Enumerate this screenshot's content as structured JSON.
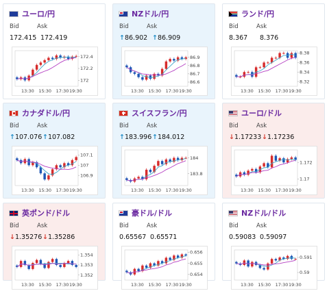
{
  "labels": {
    "bid": "Bid",
    "ask": "Ask"
  },
  "colors": {
    "up_card_bg": "#e9f4fc",
    "down_card_bg": "#fbeceb",
    "title": "#6b2aa1",
    "candle_up": "#d62c2c",
    "candle_down": "#1e57b5",
    "ma_fast": "#3fa7c9",
    "ma_slow": "#b43ec2",
    "arrow_up": "#1f8bc5",
    "arrow_down": "#d4382c"
  },
  "cards": [
    {
      "pair": "ユーロ/円",
      "flag": "eu-flag-icon",
      "state": "neutral",
      "bid": "172.415",
      "ask": "172.419",
      "chart": {
        "x_ticks": [
          "13:30",
          "15:30",
          "17:30",
          "19:30"
        ],
        "y_ticks": [
          "172.4",
          "172.2",
          "172"
        ],
        "ylim": [
          171.9,
          172.5
        ],
        "close": [
          172.02,
          172.05,
          172.0,
          172.08,
          172.18,
          172.26,
          172.3,
          172.34,
          172.38,
          172.36,
          172.42,
          172.38,
          172.4,
          172.36,
          172.4,
          172.41
        ]
      }
    },
    {
      "pair": "NZドル/円",
      "flag": "nz-flag-icon",
      "state": "up",
      "bid": "86.902",
      "ask": "86.909",
      "chart": {
        "x_ticks": [
          "13:30",
          "15:30",
          "17:30",
          "19:30"
        ],
        "y_ticks": [
          "86.9",
          "86.8",
          "86.7",
          "86.6"
        ],
        "ylim": [
          86.55,
          86.98
        ],
        "close": [
          86.78,
          86.72,
          86.7,
          86.66,
          86.63,
          86.68,
          86.64,
          86.7,
          86.68,
          86.76,
          86.85,
          86.88,
          86.86,
          86.9,
          86.88,
          86.9
        ]
      }
    },
    {
      "pair": "ランド/円",
      "flag": "za-flag-icon",
      "state": "neutral",
      "bid": "8.367",
      "ask": "8.376",
      "chart": {
        "x_ticks": [
          "13:30",
          "15:30",
          "17:30",
          "19:30"
        ],
        "y_ticks": [
          "8.38",
          "8.36",
          "8.34",
          "8.32"
        ],
        "ylim": [
          8.31,
          8.385
        ],
        "close": [
          8.33,
          8.33,
          8.34,
          8.34,
          8.33,
          8.35,
          8.35,
          8.36,
          8.36,
          8.37,
          8.37,
          8.38,
          8.38,
          8.37,
          8.38,
          8.37
        ]
      }
    },
    {
      "pair": "カナダドル/円",
      "flag": "ca-flag-icon",
      "state": "up",
      "bid": "107.076",
      "ask": "107.082",
      "chart": {
        "x_ticks": [
          "13:30",
          "15:30",
          "17:30",
          "19:30"
        ],
        "y_ticks": [
          "107.1",
          "107",
          "106.9"
        ],
        "ylim": [
          106.8,
          107.15
        ],
        "close": [
          107.05,
          107.02,
          107.06,
          107.0,
          107.03,
          106.98,
          106.92,
          106.86,
          106.9,
          106.96,
          107.0,
          106.98,
          107.02,
          107.0,
          107.05,
          107.08
        ]
      }
    },
    {
      "pair": "スイスフラン/円",
      "flag": "ch-flag-icon",
      "state": "up",
      "bid": "183.996",
      "ask": "184.012",
      "chart": {
        "x_ticks": [
          "13:30",
          "15:30",
          "17:30",
          "19:30"
        ],
        "y_ticks": [
          "184",
          "183.8"
        ],
        "ylim": [
          183.65,
          184.1
        ],
        "close": [
          183.72,
          183.7,
          183.74,
          183.76,
          183.73,
          183.85,
          183.82,
          183.9,
          183.96,
          183.92,
          183.98,
          183.95,
          184.0,
          183.97,
          184.0,
          184.0
        ]
      }
    },
    {
      "pair": "ユーロ/ドル",
      "flag": "us-flag-icon",
      "state": "down",
      "bid": "1.17233",
      "ask": "1.17236",
      "chart": {
        "x_ticks": [
          "13:30",
          "15:30",
          "17:30",
          "19:30"
        ],
        "y_ticks": [
          "1.172",
          "1.17"
        ],
        "ylim": [
          1.1692,
          1.1735
        ],
        "close": [
          1.1703,
          1.1708,
          1.1705,
          1.171,
          1.1712,
          1.1708,
          1.1715,
          1.1719,
          1.1714,
          1.1728,
          1.1722,
          1.1725,
          1.172,
          1.1724,
          1.1726,
          1.1723
        ]
      }
    },
    {
      "pair": "英ポンド/ドル",
      "flag": "uk-flag-icon",
      "state": "down",
      "bid": "1.35276",
      "ask": "1.35286",
      "chart": {
        "x_ticks": [
          "13:30",
          "15:30",
          "17:30",
          "19:30"
        ],
        "y_ticks": [
          "1.354",
          "1.353",
          "1.352"
        ],
        "ylim": [
          1.3515,
          1.3545
        ],
        "close": [
          1.3528,
          1.3534,
          1.353,
          1.3526,
          1.3532,
          1.3535,
          1.3531,
          1.3527,
          1.3533,
          1.3536,
          1.353,
          1.3528,
          1.3532,
          1.3534,
          1.353,
          1.3528
        ]
      }
    },
    {
      "pair": "豪ドル/ドル",
      "flag": "au-flag-icon",
      "state": "neutral",
      "bid": "0.65567",
      "ask": "0.65571",
      "chart": {
        "x_ticks": [
          "13:30",
          "15:30",
          "17:30",
          "19:30"
        ],
        "y_ticks": [
          "0.656",
          "0.655",
          "0.654"
        ],
        "ylim": [
          0.6535,
          0.6562
        ],
        "close": [
          0.6542,
          0.654,
          0.6545,
          0.6543,
          0.6548,
          0.6546,
          0.655,
          0.6548,
          0.6552,
          0.655,
          0.6555,
          0.6553,
          0.6557,
          0.6555,
          0.6558,
          0.6557
        ]
      }
    },
    {
      "pair": "NZドル/ドル",
      "flag": "us-flag-icon",
      "state": "neutral",
      "bid": "0.59083",
      "ask": "0.59097",
      "chart": {
        "x_ticks": [
          "13:30",
          "15:30",
          "17:30",
          "19:30"
        ],
        "y_ticks": [
          "0.591",
          "0.59"
        ],
        "ylim": [
          0.5895,
          0.5915
        ],
        "close": [
          0.5906,
          0.5905,
          0.5908,
          0.5904,
          0.5907,
          0.5905,
          0.5903,
          0.5902,
          0.5906,
          0.5909,
          0.5908,
          0.591,
          0.5909,
          0.5911,
          0.5909,
          0.5909
        ]
      }
    }
  ]
}
